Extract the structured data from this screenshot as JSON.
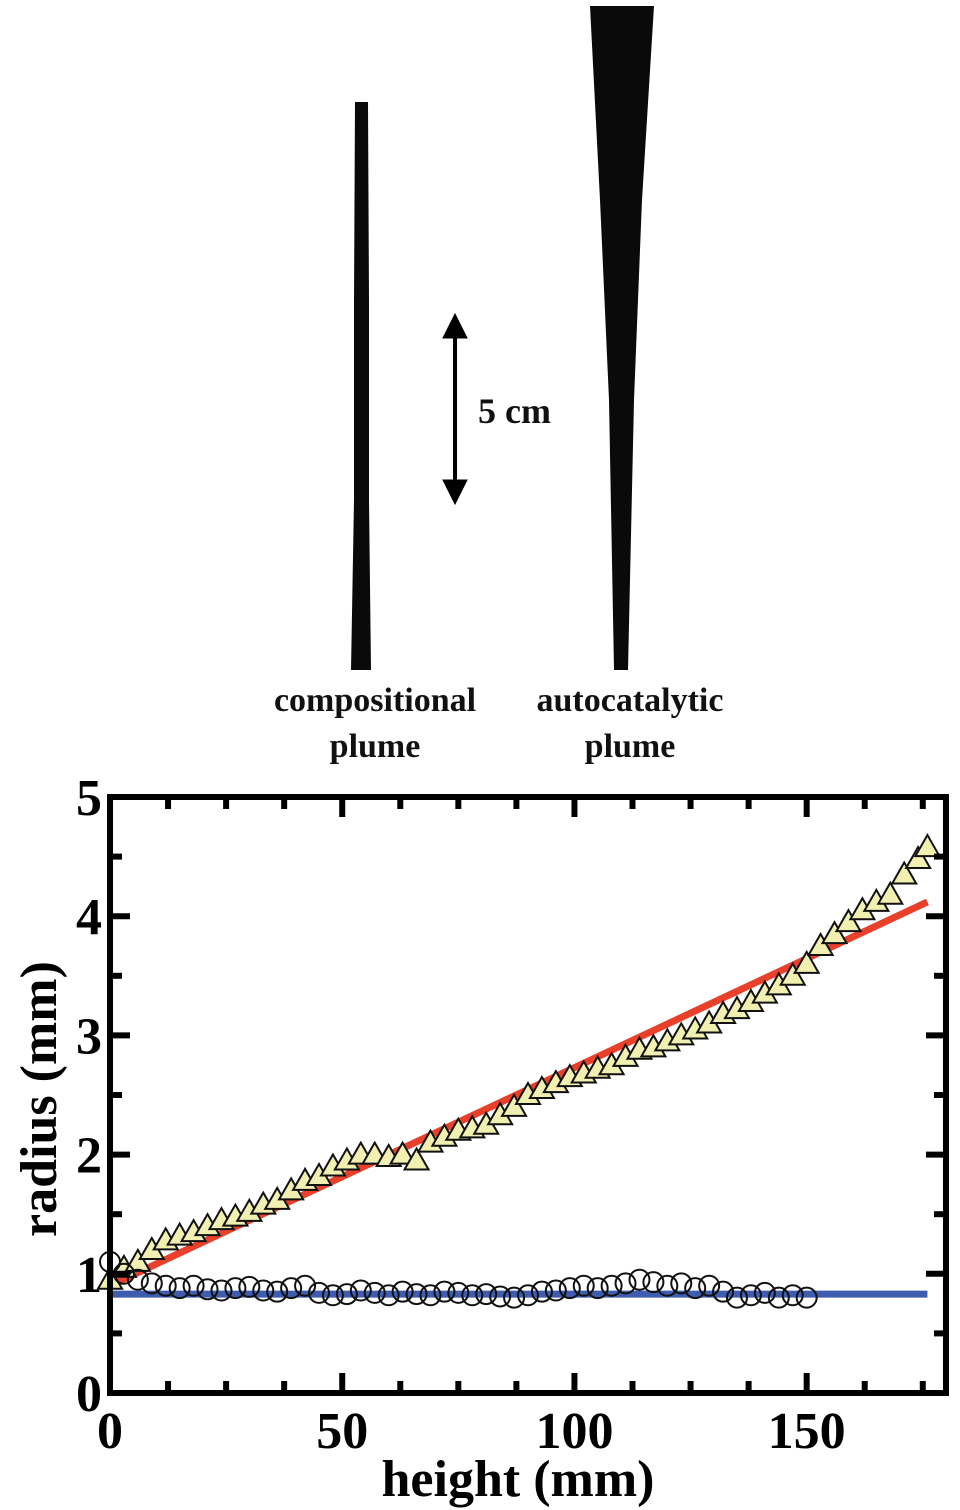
{
  "photo": {
    "scale_bar_label": "5 cm",
    "plumes": [
      {
        "label_line1": "compositional",
        "label_line2": "plume"
      },
      {
        "label_line1": "autocatalytic",
        "label_line2": "plume"
      }
    ]
  },
  "chart_data": {
    "type": "scatter",
    "title": "",
    "xlabel": "height (mm)",
    "ylabel": "radius (mm)",
    "xlim": [
      0,
      180
    ],
    "ylim": [
      0,
      5
    ],
    "xticks": [
      0,
      50,
      100,
      150
    ],
    "yticks": [
      0,
      1,
      2,
      3,
      4,
      5
    ],
    "grid": false,
    "legend": "none",
    "series": [
      {
        "marker": "triangle",
        "x": [
          0,
          3,
          6,
          9,
          12,
          15,
          18,
          21,
          24,
          27,
          30,
          33,
          36,
          39,
          42,
          45,
          48,
          51,
          54,
          57,
          60,
          63,
          66,
          69,
          72,
          75,
          78,
          81,
          84,
          87,
          90,
          93,
          96,
          99,
          102,
          105,
          108,
          111,
          114,
          117,
          120,
          123,
          126,
          129,
          132,
          135,
          138,
          141,
          144,
          147,
          150,
          153,
          156,
          159,
          162,
          165,
          168,
          171,
          174,
          176
        ],
        "y": [
          0.95,
          1.05,
          1.1,
          1.2,
          1.28,
          1.32,
          1.35,
          1.4,
          1.45,
          1.48,
          1.52,
          1.58,
          1.62,
          1.7,
          1.78,
          1.82,
          1.9,
          1.95,
          2.0,
          2.0,
          1.98,
          2.0,
          1.95,
          2.1,
          2.15,
          2.2,
          2.22,
          2.25,
          2.33,
          2.4,
          2.5,
          2.55,
          2.6,
          2.65,
          2.68,
          2.72,
          2.75,
          2.82,
          2.88,
          2.9,
          2.95,
          3.0,
          3.05,
          3.1,
          3.18,
          3.22,
          3.28,
          3.35,
          3.42,
          3.5,
          3.6,
          3.75,
          3.85,
          3.95,
          4.05,
          4.12,
          4.18,
          4.35,
          4.48,
          4.58
        ],
        "color": "#f2f0b0"
      },
      {
        "marker": "circle",
        "x": [
          0,
          3,
          6,
          9,
          12,
          15,
          18,
          21,
          24,
          27,
          30,
          33,
          36,
          39,
          42,
          45,
          48,
          51,
          54,
          57,
          60,
          63,
          66,
          69,
          72,
          75,
          78,
          81,
          84,
          87,
          90,
          93,
          96,
          99,
          102,
          105,
          108,
          111,
          114,
          117,
          120,
          123,
          126,
          129,
          132,
          135,
          138,
          141,
          144,
          147,
          150
        ],
        "y": [
          1.1,
          1.0,
          0.95,
          0.92,
          0.9,
          0.88,
          0.9,
          0.87,
          0.86,
          0.88,
          0.89,
          0.86,
          0.85,
          0.88,
          0.9,
          0.84,
          0.82,
          0.83,
          0.86,
          0.84,
          0.82,
          0.85,
          0.83,
          0.82,
          0.85,
          0.84,
          0.82,
          0.83,
          0.81,
          0.8,
          0.82,
          0.85,
          0.86,
          0.88,
          0.9,
          0.88,
          0.9,
          0.92,
          0.95,
          0.93,
          0.9,
          0.92,
          0.88,
          0.9,
          0.85,
          0.8,
          0.82,
          0.84,
          0.8,
          0.82,
          0.8
        ],
        "color": "#ffffff"
      }
    ],
    "fits": [
      {
        "color": "#e8402a",
        "x": [
          0,
          176
        ],
        "y": [
          0.9,
          4.12
        ]
      },
      {
        "color": "#3e5cb0",
        "x": [
          0,
          176
        ],
        "y": [
          0.83,
          0.83
        ]
      }
    ]
  }
}
